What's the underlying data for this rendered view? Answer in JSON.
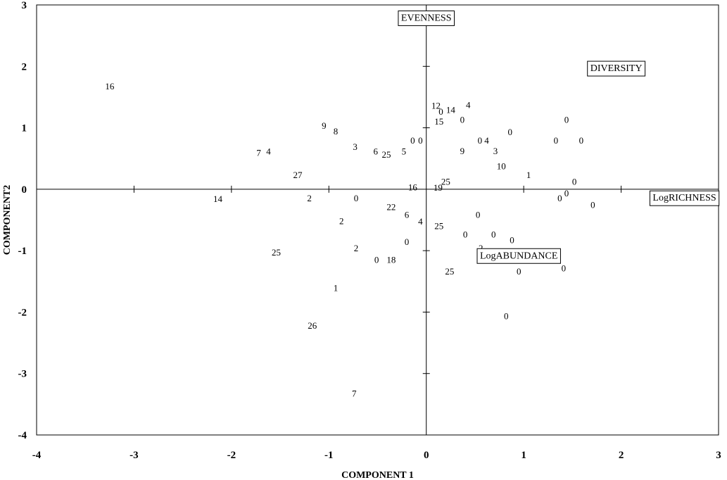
{
  "chart_data": {
    "type": "scatter",
    "title": "",
    "xlabel": "COMPONENT 1",
    "ylabel": "COMPONENT2",
    "xlim": [
      -4,
      3
    ],
    "ylim": [
      -4,
      3
    ],
    "x_ticks": [
      "-4",
      "-3",
      "-2",
      "-1",
      "0",
      "1",
      "2",
      "3"
    ],
    "y_ticks": [
      "3",
      "2",
      "1",
      "0",
      "-1",
      "-2",
      "-3",
      "-4"
    ],
    "grid": false,
    "vector_labels": [
      {
        "label": "EVENNESS",
        "x": 0.0,
        "y": 2.8
      },
      {
        "label": "DIVERSITY",
        "x": 1.95,
        "y": 1.98
      },
      {
        "label": "LogRICHNESS",
        "x": 2.65,
        "y": -0.13
      },
      {
        "label": "LogABUNDANCE",
        "x": 0.95,
        "y": -1.07
      }
    ],
    "points": [
      {
        "label": "16",
        "x": -3.25,
        "y": 1.68
      },
      {
        "label": "9",
        "x": -1.05,
        "y": 1.04
      },
      {
        "label": "8",
        "x": -0.93,
        "y": 0.95
      },
      {
        "label": "7",
        "x": -1.72,
        "y": 0.6
      },
      {
        "label": "4",
        "x": -1.62,
        "y": 0.62
      },
      {
        "label": "3",
        "x": -0.73,
        "y": 0.7
      },
      {
        "label": "6",
        "x": -0.52,
        "y": 0.62
      },
      {
        "label": "25",
        "x": -0.41,
        "y": 0.57
      },
      {
        "label": "5",
        "x": -0.23,
        "y": 0.62
      },
      {
        "label": "0",
        "x": -0.14,
        "y": 0.8
      },
      {
        "label": "0",
        "x": -0.06,
        "y": 0.8
      },
      {
        "label": "27",
        "x": -1.32,
        "y": 0.24
      },
      {
        "label": "14",
        "x": -2.14,
        "y": -0.15
      },
      {
        "label": "2",
        "x": -1.2,
        "y": -0.14
      },
      {
        "label": "0",
        "x": -0.72,
        "y": -0.14
      },
      {
        "label": "16",
        "x": -0.14,
        "y": 0.04
      },
      {
        "label": "19",
        "x": 0.12,
        "y": 0.03
      },
      {
        "label": "25",
        "x": 0.2,
        "y": 0.13
      },
      {
        "label": "12",
        "x": 0.1,
        "y": 1.37
      },
      {
        "label": "0",
        "x": 0.15,
        "y": 1.27
      },
      {
        "label": "14",
        "x": 0.25,
        "y": 1.3
      },
      {
        "label": "4",
        "x": 0.43,
        "y": 1.38
      },
      {
        "label": "15",
        "x": 0.13,
        "y": 1.11
      },
      {
        "label": "0",
        "x": 0.37,
        "y": 1.14
      },
      {
        "label": "0",
        "x": 0.86,
        "y": 0.94
      },
      {
        "label": "0",
        "x": 1.44,
        "y": 1.14
      },
      {
        "label": "0",
        "x": 0.55,
        "y": 0.8
      },
      {
        "label": "4",
        "x": 0.62,
        "y": 0.8
      },
      {
        "label": "0",
        "x": 1.33,
        "y": 0.8
      },
      {
        "label": "0",
        "x": 1.59,
        "y": 0.8
      },
      {
        "label": "9",
        "x": 0.37,
        "y": 0.63
      },
      {
        "label": "3",
        "x": 0.71,
        "y": 0.63
      },
      {
        "label": "10",
        "x": 0.77,
        "y": 0.38
      },
      {
        "label": "1",
        "x": 1.05,
        "y": 0.24
      },
      {
        "label": "0",
        "x": 1.52,
        "y": 0.13
      },
      {
        "label": "0",
        "x": 1.44,
        "y": -0.06
      },
      {
        "label": "0",
        "x": 1.37,
        "y": -0.14
      },
      {
        "label": "0",
        "x": 1.71,
        "y": -0.25
      },
      {
        "label": "22",
        "x": -0.36,
        "y": -0.28
      },
      {
        "label": "6",
        "x": -0.2,
        "y": -0.41
      },
      {
        "label": "2",
        "x": -0.87,
        "y": -0.51
      },
      {
        "label": "4",
        "x": -0.06,
        "y": -0.52
      },
      {
        "label": "25",
        "x": 0.13,
        "y": -0.59
      },
      {
        "label": "0",
        "x": 0.53,
        "y": -0.41
      },
      {
        "label": "0",
        "x": 0.4,
        "y": -0.73
      },
      {
        "label": "0",
        "x": 0.69,
        "y": -0.73
      },
      {
        "label": "0",
        "x": 0.88,
        "y": -0.82
      },
      {
        "label": "0",
        "x": -0.2,
        "y": -0.85
      },
      {
        "label": "2",
        "x": -0.72,
        "y": -0.95
      },
      {
        "label": "2",
        "x": 0.56,
        "y": -0.95
      },
      {
        "label": "0",
        "x": 0.76,
        "y": -1.1
      },
      {
        "label": "25",
        "x": -1.54,
        "y": -1.02
      },
      {
        "label": "0",
        "x": -0.51,
        "y": -1.14
      },
      {
        "label": "18",
        "x": -0.36,
        "y": -1.14
      },
      {
        "label": "25",
        "x": 0.24,
        "y": -1.33
      },
      {
        "label": "0",
        "x": 0.95,
        "y": -1.33
      },
      {
        "label": "0",
        "x": 1.41,
        "y": -1.28
      },
      {
        "label": "1",
        "x": -0.93,
        "y": -1.6
      },
      {
        "label": "0",
        "x": 0.82,
        "y": -2.06
      },
      {
        "label": "26",
        "x": -1.17,
        "y": -2.21
      },
      {
        "label": "7",
        "x": -0.74,
        "y": -3.32
      }
    ]
  }
}
